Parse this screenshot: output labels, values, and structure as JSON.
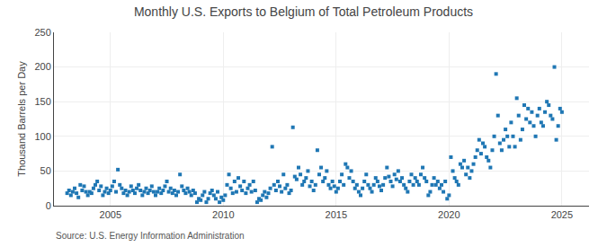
{
  "chart_data": {
    "type": "scatter",
    "title": "Monthly U.S. Exports to Belgium of Total Petroleum Products",
    "y_label": "Thousand Barrels per Day",
    "annotations": [
      "Source: U.S. Energy Information Administration"
    ],
    "marker": "square",
    "grid": true,
    "xlim": [
      2002.5,
      2026.2
    ],
    "xticks": [
      2005,
      2010,
      2015,
      2020,
      2025
    ],
    "ylim": [
      0,
      250
    ],
    "yticks": [
      0,
      50,
      100,
      150,
      200,
      250
    ],
    "x": [
      2003.083,
      2003.167,
      2003.25,
      2003.333,
      2003.417,
      2003.5,
      2003.583,
      2003.667,
      2003.75,
      2003.833,
      2003.917,
      2004.0,
      2004.083,
      2004.167,
      2004.25,
      2004.333,
      2004.417,
      2004.5,
      2004.583,
      2004.667,
      2004.75,
      2004.833,
      2004.917,
      2005.0,
      2005.083,
      2005.167,
      2005.25,
      2005.333,
      2005.417,
      2005.5,
      2005.583,
      2005.667,
      2005.75,
      2005.833,
      2005.917,
      2006.0,
      2006.083,
      2006.167,
      2006.25,
      2006.333,
      2006.417,
      2006.5,
      2006.583,
      2006.667,
      2006.75,
      2006.833,
      2006.917,
      2007.0,
      2007.083,
      2007.167,
      2007.25,
      2007.333,
      2007.417,
      2007.5,
      2007.583,
      2007.667,
      2007.75,
      2007.833,
      2007.917,
      2008.0,
      2008.083,
      2008.167,
      2008.25,
      2008.333,
      2008.417,
      2008.5,
      2008.583,
      2008.667,
      2008.75,
      2008.833,
      2008.917,
      2009.0,
      2009.083,
      2009.167,
      2009.25,
      2009.333,
      2009.417,
      2009.5,
      2009.583,
      2009.667,
      2009.75,
      2009.833,
      2009.917,
      2010.0,
      2010.083,
      2010.167,
      2010.25,
      2010.333,
      2010.417,
      2010.5,
      2010.583,
      2010.667,
      2010.75,
      2010.833,
      2010.917,
      2011.0,
      2011.083,
      2011.167,
      2011.25,
      2011.333,
      2011.417,
      2011.5,
      2011.583,
      2011.667,
      2011.75,
      2011.833,
      2011.917,
      2012.0,
      2012.083,
      2012.167,
      2012.25,
      2012.333,
      2012.417,
      2012.5,
      2012.583,
      2012.667,
      2012.75,
      2012.833,
      2012.917,
      2013.0,
      2013.083,
      2013.167,
      2013.25,
      2013.333,
      2013.417,
      2013.5,
      2013.583,
      2013.667,
      2013.75,
      2013.833,
      2013.917,
      2014.0,
      2014.083,
      2014.167,
      2014.25,
      2014.333,
      2014.417,
      2014.5,
      2014.583,
      2014.667,
      2014.75,
      2014.833,
      2014.917,
      2015.0,
      2015.083,
      2015.167,
      2015.25,
      2015.333,
      2015.417,
      2015.5,
      2015.583,
      2015.667,
      2015.75,
      2015.833,
      2015.917,
      2016.0,
      2016.083,
      2016.167,
      2016.25,
      2016.333,
      2016.417,
      2016.5,
      2016.583,
      2016.667,
      2016.75,
      2016.833,
      2016.917,
      2017.0,
      2017.083,
      2017.167,
      2017.25,
      2017.333,
      2017.417,
      2017.5,
      2017.583,
      2017.667,
      2017.75,
      2017.833,
      2017.917,
      2018.0,
      2018.083,
      2018.167,
      2018.25,
      2018.333,
      2018.417,
      2018.5,
      2018.583,
      2018.667,
      2018.75,
      2018.833,
      2018.917,
      2019.0,
      2019.083,
      2019.167,
      2019.25,
      2019.333,
      2019.417,
      2019.5,
      2019.583,
      2019.667,
      2019.75,
      2019.833,
      2019.917,
      2020.0,
      2020.083,
      2020.167,
      2020.25,
      2020.333,
      2020.417,
      2020.5,
      2020.583,
      2020.667,
      2020.75,
      2020.833,
      2020.917,
      2021.0,
      2021.083,
      2021.167,
      2021.25,
      2021.333,
      2021.417,
      2021.5,
      2021.583,
      2021.667,
      2021.75,
      2021.833,
      2021.917,
      2022.0,
      2022.083,
      2022.167,
      2022.25,
      2022.333,
      2022.417,
      2022.5,
      2022.583,
      2022.667,
      2022.75,
      2022.833,
      2022.917,
      2023.0,
      2023.083,
      2023.167,
      2023.25,
      2023.333,
      2023.417,
      2023.5,
      2023.583,
      2023.667,
      2023.75,
      2023.833,
      2023.917,
      2024.0,
      2024.083,
      2024.167,
      2024.25,
      2024.333,
      2024.417,
      2024.5,
      2024.583,
      2024.667,
      2024.75,
      2024.833,
      2024.917,
      2025.0
    ],
    "values": [
      18,
      22,
      15,
      20,
      25,
      18,
      12,
      30,
      22,
      28,
      20,
      15,
      20,
      18,
      25,
      30,
      35,
      22,
      28,
      15,
      20,
      25,
      18,
      22,
      28,
      35,
      20,
      52,
      30,
      25,
      18,
      22,
      15,
      20,
      28,
      22,
      18,
      25,
      30,
      22,
      15,
      20,
      25,
      18,
      22,
      28,
      20,
      15,
      20,
      25,
      18,
      22,
      28,
      35,
      20,
      25,
      18,
      22,
      15,
      20,
      45,
      28,
      22,
      18,
      25,
      20,
      15,
      22,
      18,
      5,
      10,
      8,
      15,
      20,
      5,
      10,
      18,
      22,
      15,
      10,
      20,
      5,
      12,
      8,
      15,
      30,
      45,
      25,
      18,
      35,
      20,
      40,
      28,
      22,
      35,
      18,
      25,
      30,
      20,
      35,
      22,
      5,
      10,
      8,
      15,
      20,
      12,
      18,
      25,
      85,
      30,
      22,
      35,
      28,
      20,
      45,
      25,
      30,
      18,
      22,
      113,
      42,
      38,
      55,
      45,
      30,
      35,
      40,
      50,
      28,
      35,
      22,
      30,
      80,
      45,
      55,
      35,
      40,
      50,
      30,
      25,
      35,
      28,
      20,
      25,
      35,
      45,
      30,
      60,
      55,
      40,
      50,
      35,
      25,
      30,
      20,
      15,
      25,
      35,
      45,
      30,
      25,
      20,
      30,
      40,
      35,
      28,
      22,
      30,
      40,
      55,
      42,
      35,
      28,
      45,
      38,
      50,
      35,
      40,
      30,
      25,
      20,
      35,
      45,
      30,
      40,
      35,
      30,
      45,
      55,
      40,
      35,
      15,
      20,
      30,
      40,
      30,
      35,
      25,
      30,
      20,
      35,
      10,
      15,
      70,
      50,
      40,
      35,
      30,
      60,
      55,
      65,
      45,
      55,
      40,
      50,
      60,
      70,
      80,
      95,
      75,
      90,
      85,
      70,
      65,
      55,
      80,
      100,
      190,
      130,
      90,
      80,
      95,
      110,
      100,
      85,
      120,
      100,
      85,
      155,
      130,
      95,
      110,
      145,
      125,
      140,
      120,
      135,
      115,
      100,
      130,
      140,
      120,
      115,
      135,
      150,
      145,
      130,
      125,
      200,
      95,
      115,
      140,
      135
    ]
  }
}
